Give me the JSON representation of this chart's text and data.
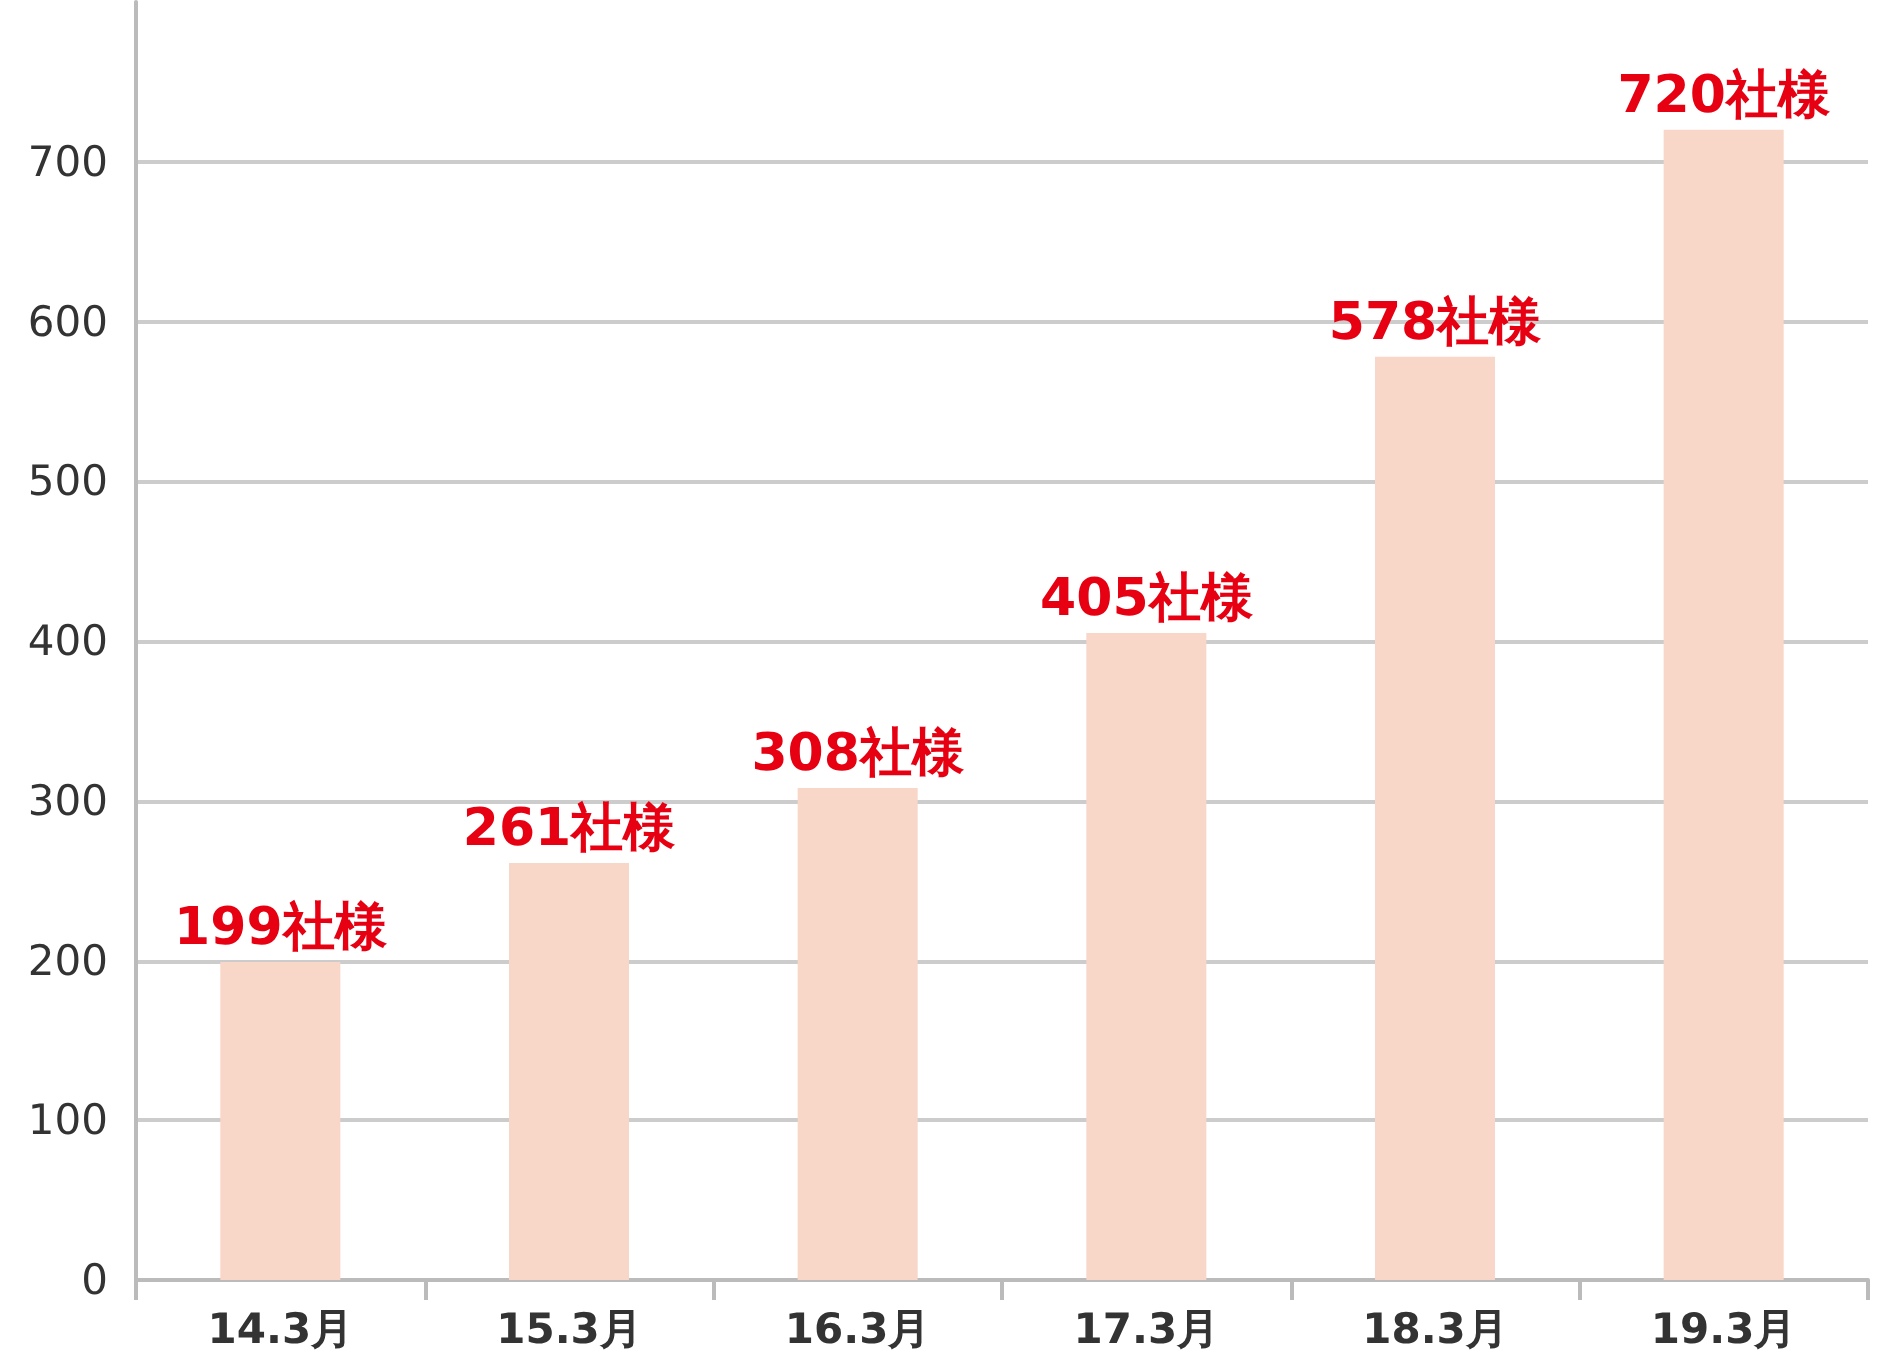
{
  "chart_data": {
    "type": "bar",
    "categories": [
      "14.3月",
      "15.3月",
      "16.3月",
      "17.3月",
      "18.3月",
      "19.3月"
    ],
    "values": [
      199,
      261,
      308,
      405,
      578,
      720
    ],
    "value_labels": [
      "199社様",
      "261社様",
      "308社様",
      "405社様",
      "578社様",
      "720社様"
    ],
    "color": "#f8d6c8",
    "ylim": [
      0,
      800
    ],
    "yticks": [
      0,
      100,
      200,
      300,
      400,
      500,
      600,
      700
    ],
    "grid": "y"
  }
}
